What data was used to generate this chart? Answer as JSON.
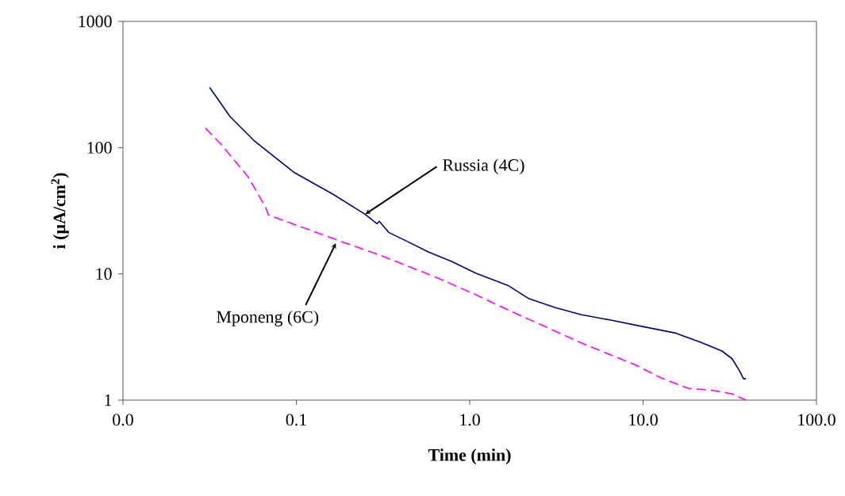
{
  "chart_data": {
    "type": "line",
    "xlabel": "Time (min)",
    "ylabel": "i (µA/cm$^{2}$)",
    "log": "xy",
    "grid": false,
    "marker": "none",
    "xlim": [
      0.01,
      100
    ],
    "ylim": [
      1,
      1000
    ],
    "xticks": [
      {
        "value": 0.01,
        "label": "0.0"
      },
      {
        "value": 0.1,
        "label": "0.1"
      },
      {
        "value": 1,
        "label": "1.0"
      },
      {
        "value": 10,
        "label": "10.0"
      },
      {
        "value": 100,
        "label": "100.0"
      }
    ],
    "yticks": [
      1,
      10,
      100,
      1000
    ],
    "series": [
      {
        "color": "#000080",
        "line_style": "solid",
        "x": [
          0.0316,
          0.0415,
          0.0569,
          0.0964,
          0.163,
          0.249,
          0.292,
          0.301,
          0.341,
          0.422,
          0.578,
          0.792,
          1.09,
          1.66,
          2.2,
          3.12,
          4.42,
          6.53,
          8.95,
          15.2,
          21.5,
          28.5,
          32.7,
          36.4,
          37.9,
          39.2
        ],
        "values": [
          300,
          176,
          114,
          64,
          42.7,
          29.7,
          25.0,
          26.1,
          21.3,
          18.5,
          14.9,
          12.5,
          10.1,
          8.11,
          6.35,
          5.41,
          4.75,
          4.3,
          3.94,
          3.41,
          2.87,
          2.45,
          2.12,
          1.66,
          1.48,
          1.48
        ]
      },
      {
        "color": "#ff00ff",
        "line_style": "dashed",
        "x": [
          0.0299,
          0.0373,
          0.0528,
          0.0667,
          0.0689,
          0.169,
          0.307,
          0.643,
          1.09,
          1.45,
          2.2,
          4.42,
          8.95,
          12.7,
          18.2,
          25.7,
          32.7,
          39.2
        ],
        "values": [
          143,
          104,
          58.6,
          33.4,
          29.3,
          18.7,
          14.0,
          9.37,
          6.82,
          5.65,
          4.36,
          2.83,
          1.91,
          1.5,
          1.24,
          1.19,
          1.12,
          1.0
        ]
      }
    ],
    "annotations": [
      {
        "text": "Russia (4C)",
        "x": 0.25,
        "y": 29.7
      },
      {
        "text": "Mponeng (6C)",
        "x": 0.169,
        "y": 17.5
      }
    ]
  }
}
